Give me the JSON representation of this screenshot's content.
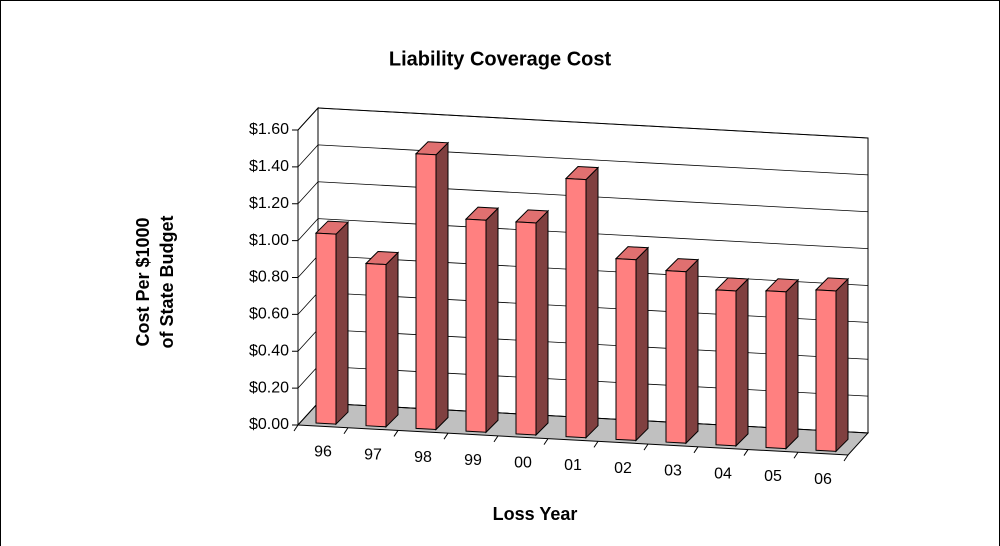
{
  "chart_data": {
    "type": "bar3d",
    "title": "Liability Coverage Cost",
    "y_label_lines": [
      "Cost Per $1000",
      "of State Budget"
    ],
    "x_label": "Loss Year",
    "categories": [
      "96",
      "97",
      "98",
      "99",
      "00",
      "01",
      "02",
      "03",
      "04",
      "05",
      "06"
    ],
    "values": [
      1.03,
      0.88,
      1.49,
      1.15,
      1.15,
      1.4,
      0.98,
      0.93,
      0.84,
      0.85,
      0.87
    ],
    "color": "#ff8080",
    "ylim": [
      0,
      1.6
    ],
    "yticks": [
      {
        "value": 0,
        "label": "$0.00"
      },
      {
        "value": 0.2,
        "label": "$0.20"
      },
      {
        "value": 0.4,
        "label": "$0.40"
      },
      {
        "value": 0.6,
        "label": "$0.60"
      },
      {
        "value": 0.8,
        "label": "$0.80"
      },
      {
        "value": 1.0,
        "label": "$1.00"
      },
      {
        "value": 1.2,
        "label": "$1.20"
      },
      {
        "value": 1.4,
        "label": "$1.40"
      },
      {
        "value": 1.6,
        "label": "$1.60"
      }
    ],
    "grid": true
  }
}
